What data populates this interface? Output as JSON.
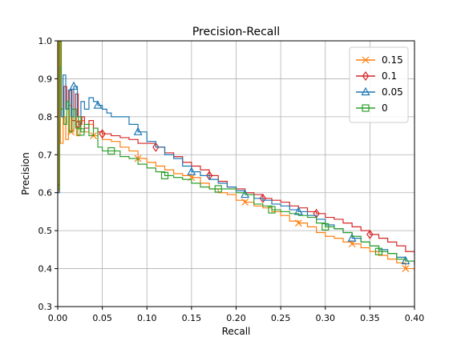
{
  "chart_data": {
    "type": "line",
    "title": "Precision-Recall",
    "xlabel": "Recall",
    "ylabel": "Precision",
    "xlim": [
      0.0,
      0.4
    ],
    "ylim": [
      0.3,
      1.0
    ],
    "xticks": [
      "0.00",
      "0.05",
      "0.10",
      "0.15",
      "0.20",
      "0.25",
      "0.30",
      "0.35",
      "0.40"
    ],
    "yticks": [
      "0.3",
      "0.4",
      "0.5",
      "0.6",
      "0.7",
      "0.8",
      "0.9",
      "1.0"
    ],
    "grid": true,
    "legend_position": "top-right",
    "series": [
      {
        "name": "0.15",
        "color": "#ff7f0e",
        "marker": "x",
        "points": [
          [
            0.0,
            0.6
          ],
          [
            0.001,
            1.0
          ],
          [
            0.003,
            0.73
          ],
          [
            0.006,
            0.8
          ],
          [
            0.009,
            0.74
          ],
          [
            0.012,
            0.83
          ],
          [
            0.015,
            0.76
          ],
          [
            0.018,
            0.82
          ],
          [
            0.021,
            0.75
          ],
          [
            0.025,
            0.79
          ],
          [
            0.03,
            0.76
          ],
          [
            0.035,
            0.78
          ],
          [
            0.04,
            0.75
          ],
          [
            0.045,
            0.76
          ],
          [
            0.05,
            0.74
          ],
          [
            0.06,
            0.735
          ],
          [
            0.07,
            0.72
          ],
          [
            0.08,
            0.71
          ],
          [
            0.09,
            0.69
          ],
          [
            0.1,
            0.68
          ],
          [
            0.11,
            0.67
          ],
          [
            0.12,
            0.66
          ],
          [
            0.13,
            0.65
          ],
          [
            0.14,
            0.645
          ],
          [
            0.15,
            0.64
          ],
          [
            0.16,
            0.625
          ],
          [
            0.17,
            0.61
          ],
          [
            0.18,
            0.6
          ],
          [
            0.19,
            0.595
          ],
          [
            0.2,
            0.58
          ],
          [
            0.21,
            0.575
          ],
          [
            0.22,
            0.565
          ],
          [
            0.23,
            0.56
          ],
          [
            0.24,
            0.55
          ],
          [
            0.25,
            0.54
          ],
          [
            0.26,
            0.525
          ],
          [
            0.27,
            0.52
          ],
          [
            0.28,
            0.51
          ],
          [
            0.29,
            0.495
          ],
          [
            0.3,
            0.485
          ],
          [
            0.31,
            0.48
          ],
          [
            0.32,
            0.47
          ],
          [
            0.33,
            0.465
          ],
          [
            0.34,
            0.455
          ],
          [
            0.35,
            0.445
          ],
          [
            0.36,
            0.435
          ],
          [
            0.37,
            0.425
          ],
          [
            0.38,
            0.415
          ],
          [
            0.39,
            0.4
          ],
          [
            0.4,
            0.395
          ]
        ]
      },
      {
        "name": "0.1",
        "color": "#d62728",
        "marker": "diamond",
        "points": [
          [
            0.0,
            0.62
          ],
          [
            0.002,
            1.0
          ],
          [
            0.004,
            0.8
          ],
          [
            0.007,
            0.88
          ],
          [
            0.01,
            0.82
          ],
          [
            0.013,
            0.87
          ],
          [
            0.016,
            0.79
          ],
          [
            0.02,
            0.86
          ],
          [
            0.023,
            0.78
          ],
          [
            0.027,
            0.8
          ],
          [
            0.03,
            0.77
          ],
          [
            0.035,
            0.79
          ],
          [
            0.04,
            0.77
          ],
          [
            0.045,
            0.76
          ],
          [
            0.05,
            0.755
          ],
          [
            0.06,
            0.75
          ],
          [
            0.07,
            0.745
          ],
          [
            0.08,
            0.74
          ],
          [
            0.09,
            0.73
          ],
          [
            0.1,
            0.73
          ],
          [
            0.11,
            0.72
          ],
          [
            0.12,
            0.705
          ],
          [
            0.13,
            0.695
          ],
          [
            0.14,
            0.68
          ],
          [
            0.15,
            0.67
          ],
          [
            0.16,
            0.66
          ],
          [
            0.17,
            0.645
          ],
          [
            0.18,
            0.63
          ],
          [
            0.19,
            0.615
          ],
          [
            0.2,
            0.61
          ],
          [
            0.21,
            0.6
          ],
          [
            0.22,
            0.595
          ],
          [
            0.23,
            0.585
          ],
          [
            0.24,
            0.58
          ],
          [
            0.25,
            0.575
          ],
          [
            0.26,
            0.565
          ],
          [
            0.27,
            0.56
          ],
          [
            0.28,
            0.55
          ],
          [
            0.29,
            0.545
          ],
          [
            0.3,
            0.535
          ],
          [
            0.31,
            0.53
          ],
          [
            0.32,
            0.52
          ],
          [
            0.33,
            0.51
          ],
          [
            0.34,
            0.5
          ],
          [
            0.35,
            0.49
          ],
          [
            0.36,
            0.48
          ],
          [
            0.37,
            0.47
          ],
          [
            0.38,
            0.46
          ],
          [
            0.39,
            0.445
          ],
          [
            0.4,
            0.435
          ]
        ]
      },
      {
        "name": "0.05",
        "color": "#1f77b4",
        "marker": "triangle",
        "points": [
          [
            0.0,
            0.6
          ],
          [
            0.002,
            0.93
          ],
          [
            0.004,
            0.8
          ],
          [
            0.006,
            0.91
          ],
          [
            0.009,
            0.82
          ],
          [
            0.012,
            0.87
          ],
          [
            0.015,
            0.8
          ],
          [
            0.018,
            0.88
          ],
          [
            0.022,
            0.8
          ],
          [
            0.026,
            0.84
          ],
          [
            0.03,
            0.82
          ],
          [
            0.035,
            0.85
          ],
          [
            0.04,
            0.84
          ],
          [
            0.045,
            0.83
          ],
          [
            0.05,
            0.82
          ],
          [
            0.055,
            0.81
          ],
          [
            0.06,
            0.8
          ],
          [
            0.07,
            0.8
          ],
          [
            0.08,
            0.78
          ],
          [
            0.09,
            0.76
          ],
          [
            0.1,
            0.735
          ],
          [
            0.11,
            0.72
          ],
          [
            0.12,
            0.7
          ],
          [
            0.13,
            0.69
          ],
          [
            0.14,
            0.67
          ],
          [
            0.15,
            0.655
          ],
          [
            0.16,
            0.645
          ],
          [
            0.17,
            0.635
          ],
          [
            0.18,
            0.625
          ],
          [
            0.19,
            0.615
          ],
          [
            0.2,
            0.605
          ],
          [
            0.21,
            0.595
          ],
          [
            0.22,
            0.585
          ],
          [
            0.23,
            0.58
          ],
          [
            0.24,
            0.57
          ],
          [
            0.25,
            0.565
          ],
          [
            0.26,
            0.555
          ],
          [
            0.27,
            0.55
          ],
          [
            0.28,
            0.54
          ],
          [
            0.29,
            0.53
          ],
          [
            0.3,
            0.515
          ],
          [
            0.31,
            0.505
          ],
          [
            0.32,
            0.495
          ],
          [
            0.33,
            0.48
          ],
          [
            0.34,
            0.47
          ],
          [
            0.35,
            0.46
          ],
          [
            0.36,
            0.45
          ],
          [
            0.37,
            0.44
          ],
          [
            0.38,
            0.43
          ],
          [
            0.39,
            0.42
          ],
          [
            0.4,
            0.41
          ]
        ]
      },
      {
        "name": "0",
        "color": "#2ca02c",
        "marker": "square",
        "points": [
          [
            0.0,
            0.61
          ],
          [
            0.002,
            1.0
          ],
          [
            0.004,
            0.82
          ],
          [
            0.007,
            0.78
          ],
          [
            0.01,
            0.84
          ],
          [
            0.013,
            0.76
          ],
          [
            0.016,
            0.82
          ],
          [
            0.02,
            0.77
          ],
          [
            0.023,
            0.8
          ],
          [
            0.026,
            0.76
          ],
          [
            0.03,
            0.78
          ],
          [
            0.035,
            0.75
          ],
          [
            0.04,
            0.77
          ],
          [
            0.045,
            0.72
          ],
          [
            0.05,
            0.71
          ],
          [
            0.06,
            0.71
          ],
          [
            0.07,
            0.695
          ],
          [
            0.08,
            0.69
          ],
          [
            0.09,
            0.675
          ],
          [
            0.1,
            0.665
          ],
          [
            0.11,
            0.655
          ],
          [
            0.12,
            0.645
          ],
          [
            0.13,
            0.64
          ],
          [
            0.14,
            0.635
          ],
          [
            0.15,
            0.625
          ],
          [
            0.16,
            0.615
          ],
          [
            0.17,
            0.61
          ],
          [
            0.18,
            0.61
          ],
          [
            0.19,
            0.61
          ],
          [
            0.2,
            0.6
          ],
          [
            0.21,
            0.595
          ],
          [
            0.22,
            0.57
          ],
          [
            0.23,
            0.565
          ],
          [
            0.24,
            0.555
          ],
          [
            0.25,
            0.55
          ],
          [
            0.26,
            0.545
          ],
          [
            0.27,
            0.54
          ],
          [
            0.28,
            0.535
          ],
          [
            0.29,
            0.52
          ],
          [
            0.3,
            0.51
          ],
          [
            0.31,
            0.505
          ],
          [
            0.32,
            0.495
          ],
          [
            0.33,
            0.485
          ],
          [
            0.34,
            0.47
          ],
          [
            0.35,
            0.46
          ],
          [
            0.36,
            0.445
          ],
          [
            0.37,
            0.44
          ],
          [
            0.38,
            0.425
          ],
          [
            0.39,
            0.42
          ],
          [
            0.4,
            0.41
          ]
        ]
      }
    ]
  }
}
